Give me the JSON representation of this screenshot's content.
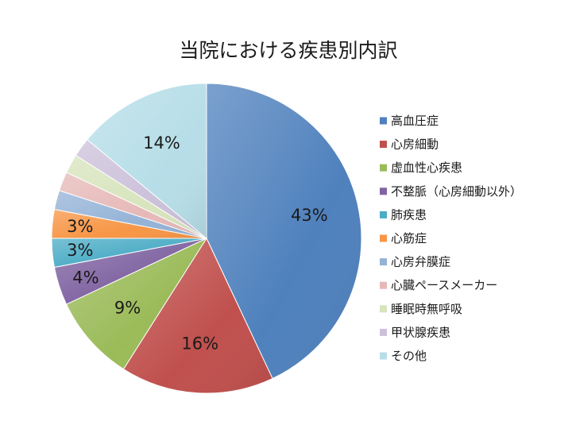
{
  "chart_data": {
    "type": "pie",
    "title": "当院における疾患別内訳",
    "legend_position": "right",
    "slices": [
      {
        "name": "高血圧症",
        "value": 43,
        "label": "43%",
        "color": "#4f81bd"
      },
      {
        "name": "心房細動",
        "value": 16,
        "label": "16%",
        "color": "#c0504d"
      },
      {
        "name": "虚血性心疾患",
        "value": 9,
        "label": "9%",
        "color": "#9bbb59"
      },
      {
        "name": "不整脈（心房細動以外）",
        "value": 4,
        "label": "4%",
        "color": "#8064a2"
      },
      {
        "name": "肺疾患",
        "value": 3,
        "label": "3%",
        "color": "#4bacc6"
      },
      {
        "name": "心筋症",
        "value": 3,
        "label": "3%",
        "color": "#f79646"
      },
      {
        "name": "心房弁膜症",
        "value": 2,
        "label": "",
        "color": "#95b3d7"
      },
      {
        "name": "心臓ペースメーカー",
        "value": 2,
        "label": "",
        "color": "#e6b9b8"
      },
      {
        "name": "睡眠時無呼吸",
        "value": 2,
        "label": "",
        "color": "#d7e4bd"
      },
      {
        "name": "甲状腺疾患",
        "value": 2,
        "label": "",
        "color": "#ccc1da"
      },
      {
        "name": "その他",
        "value": 14,
        "label": "14%",
        "color": "#b7dee8"
      }
    ]
  }
}
